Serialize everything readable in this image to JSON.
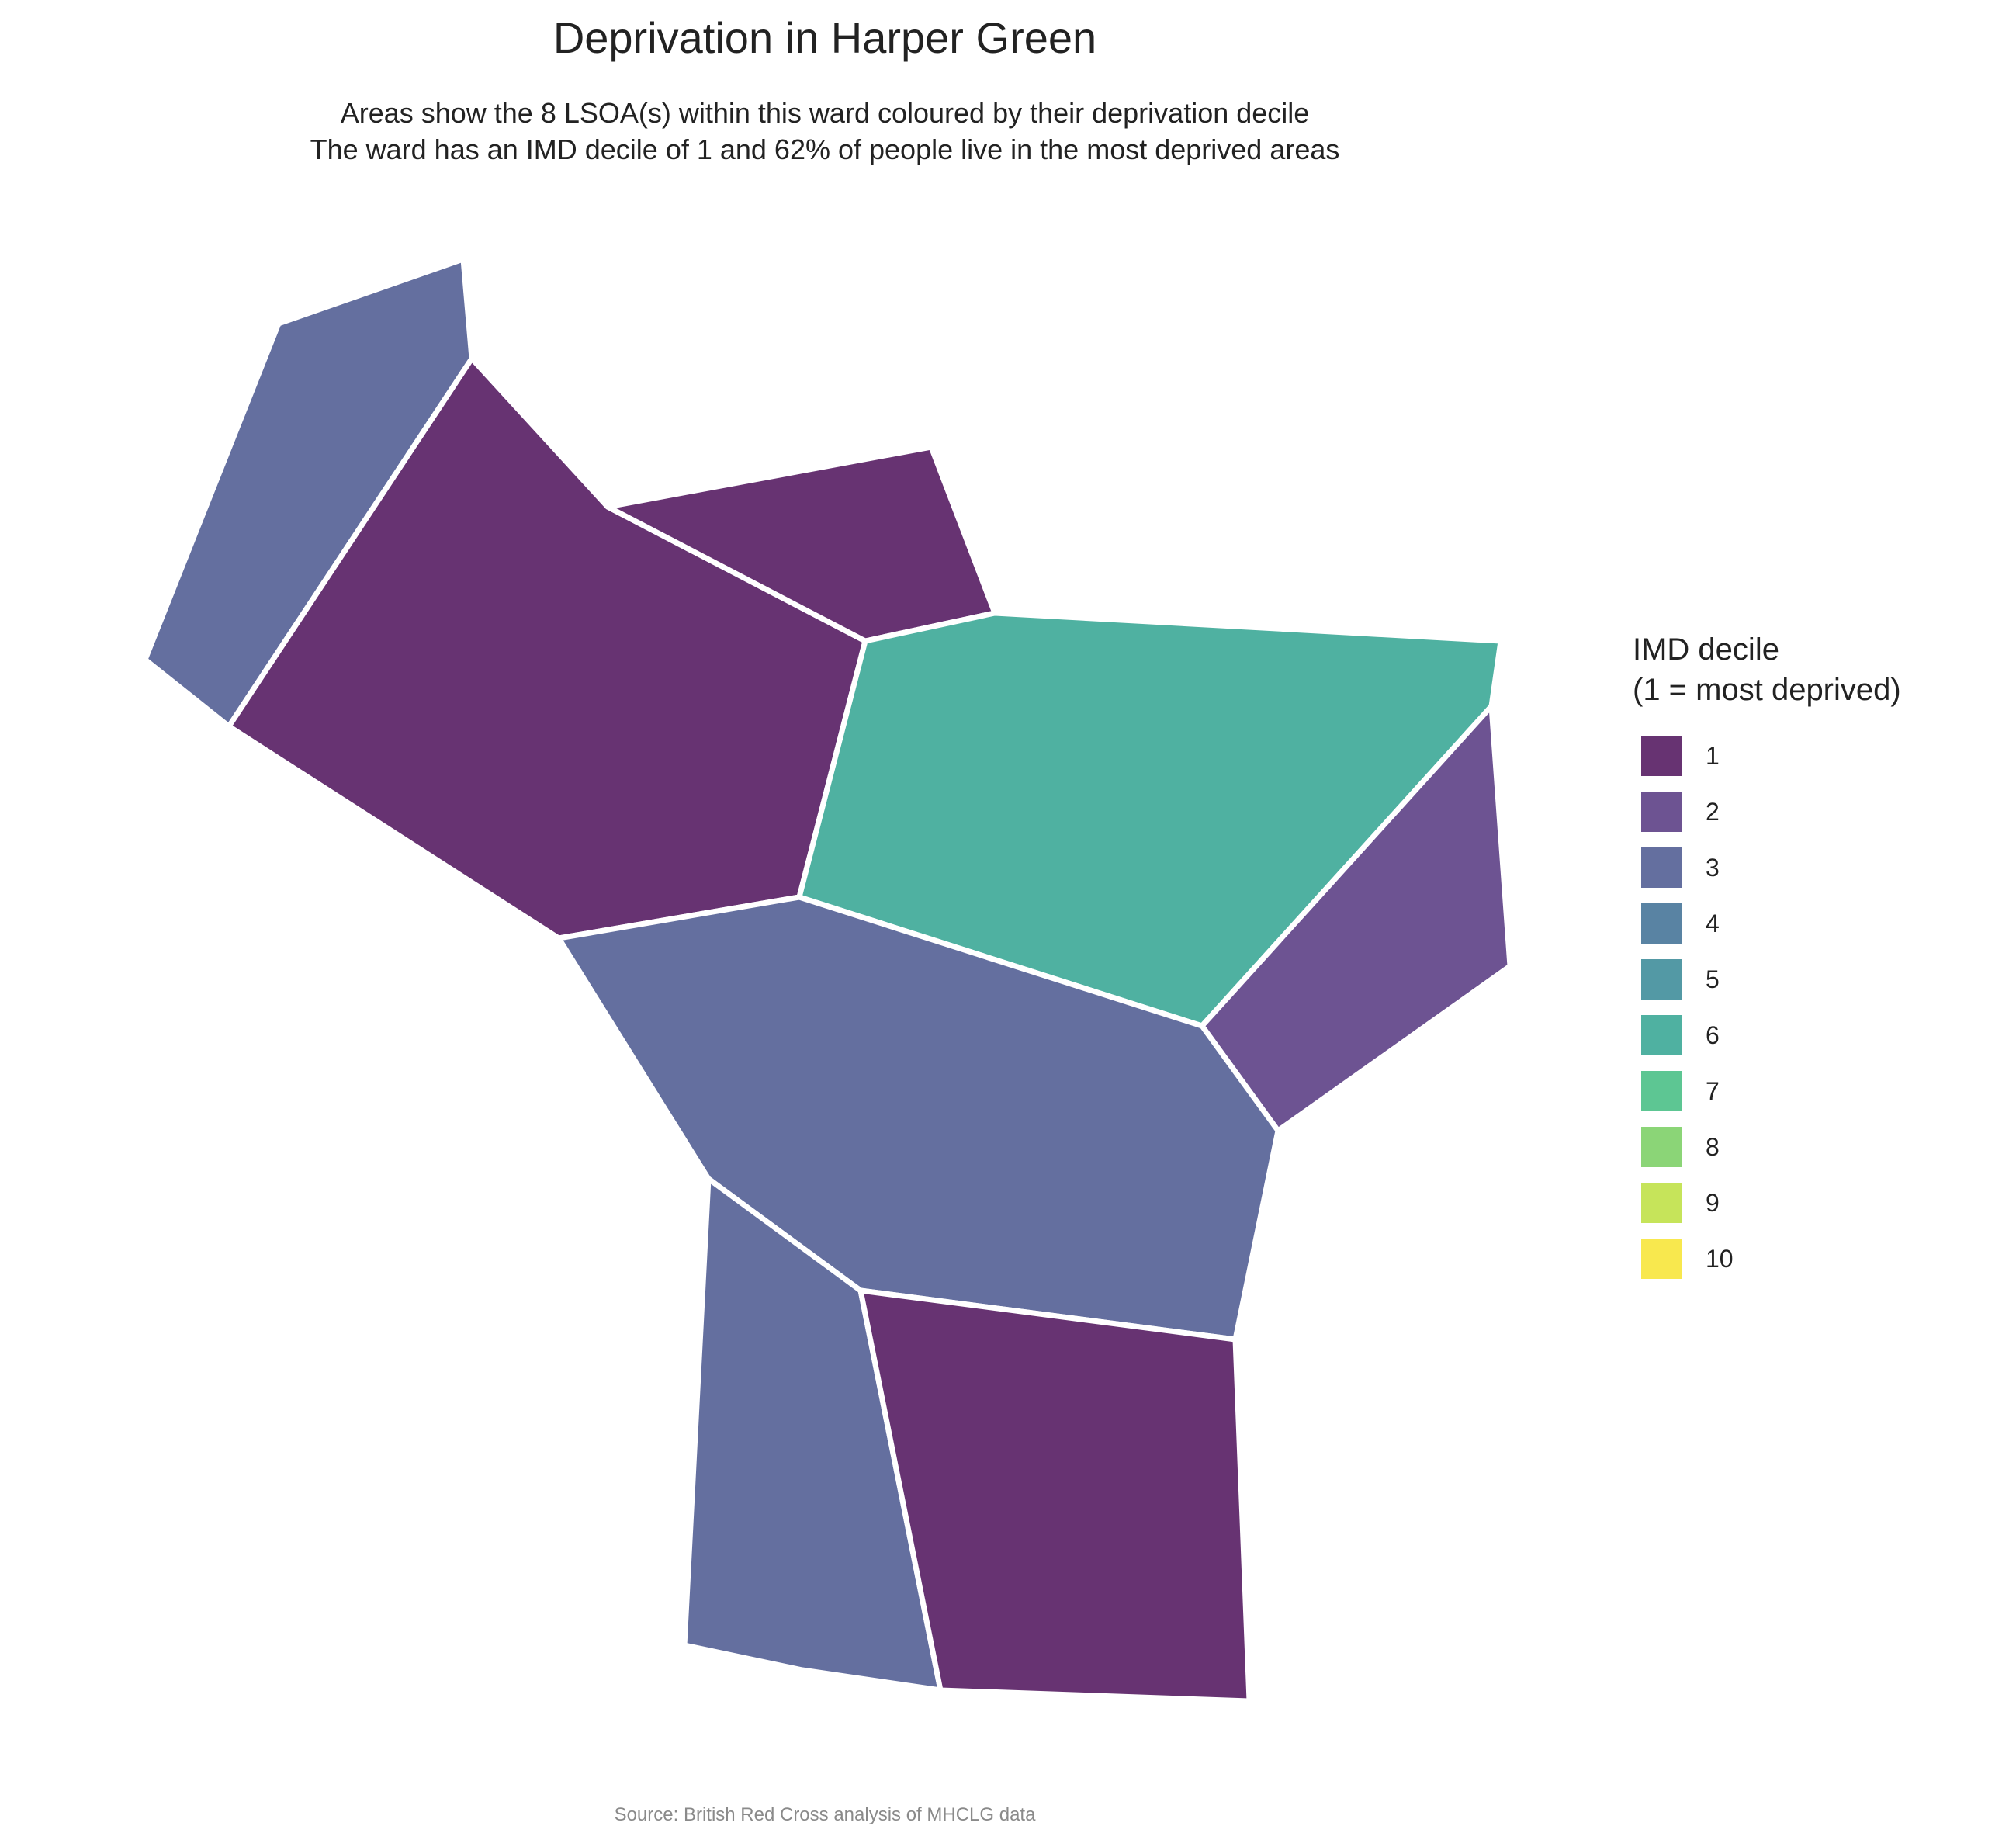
{
  "title": "Deprivation in Harper Green",
  "subtitle_lines": [
    "Areas show the 8 LSOA(s) within this ward coloured by their deprivation decile",
    "The ward has an IMD decile of 1 and 62% of people live in the most deprived areas"
  ],
  "caption": "Source: British Red Cross analysis of MHCLG data",
  "legend": {
    "title_lines": [
      "IMD decile",
      "(1 = most deprived)"
    ],
    "items": [
      {
        "label": "1",
        "color": "#673372"
      },
      {
        "label": "2",
        "color": "#6d5392"
      },
      {
        "label": "3",
        "color": "#646f9f"
      },
      {
        "label": "4",
        "color": "#5983a3"
      },
      {
        "label": "5",
        "color": "#5399a5"
      },
      {
        "label": "6",
        "color": "#4fb1a1"
      },
      {
        "label": "7",
        "color": "#5dc693"
      },
      {
        "label": "8",
        "color": "#8bd577"
      },
      {
        "label": "9",
        "color": "#c6e45a"
      },
      {
        "label": "10",
        "color": "#f8e84e"
      }
    ]
  },
  "areas": [
    {
      "id": "lsoa-nw",
      "decile": 3
    },
    {
      "id": "lsoa-w",
      "decile": 1
    },
    {
      "id": "lsoa-n",
      "decile": 1
    },
    {
      "id": "lsoa-ne",
      "decile": 6
    },
    {
      "id": "lsoa-e",
      "decile": 2
    },
    {
      "id": "lsoa-c",
      "decile": 3
    },
    {
      "id": "lsoa-sw",
      "decile": 3
    },
    {
      "id": "lsoa-s",
      "decile": 1
    }
  ]
}
